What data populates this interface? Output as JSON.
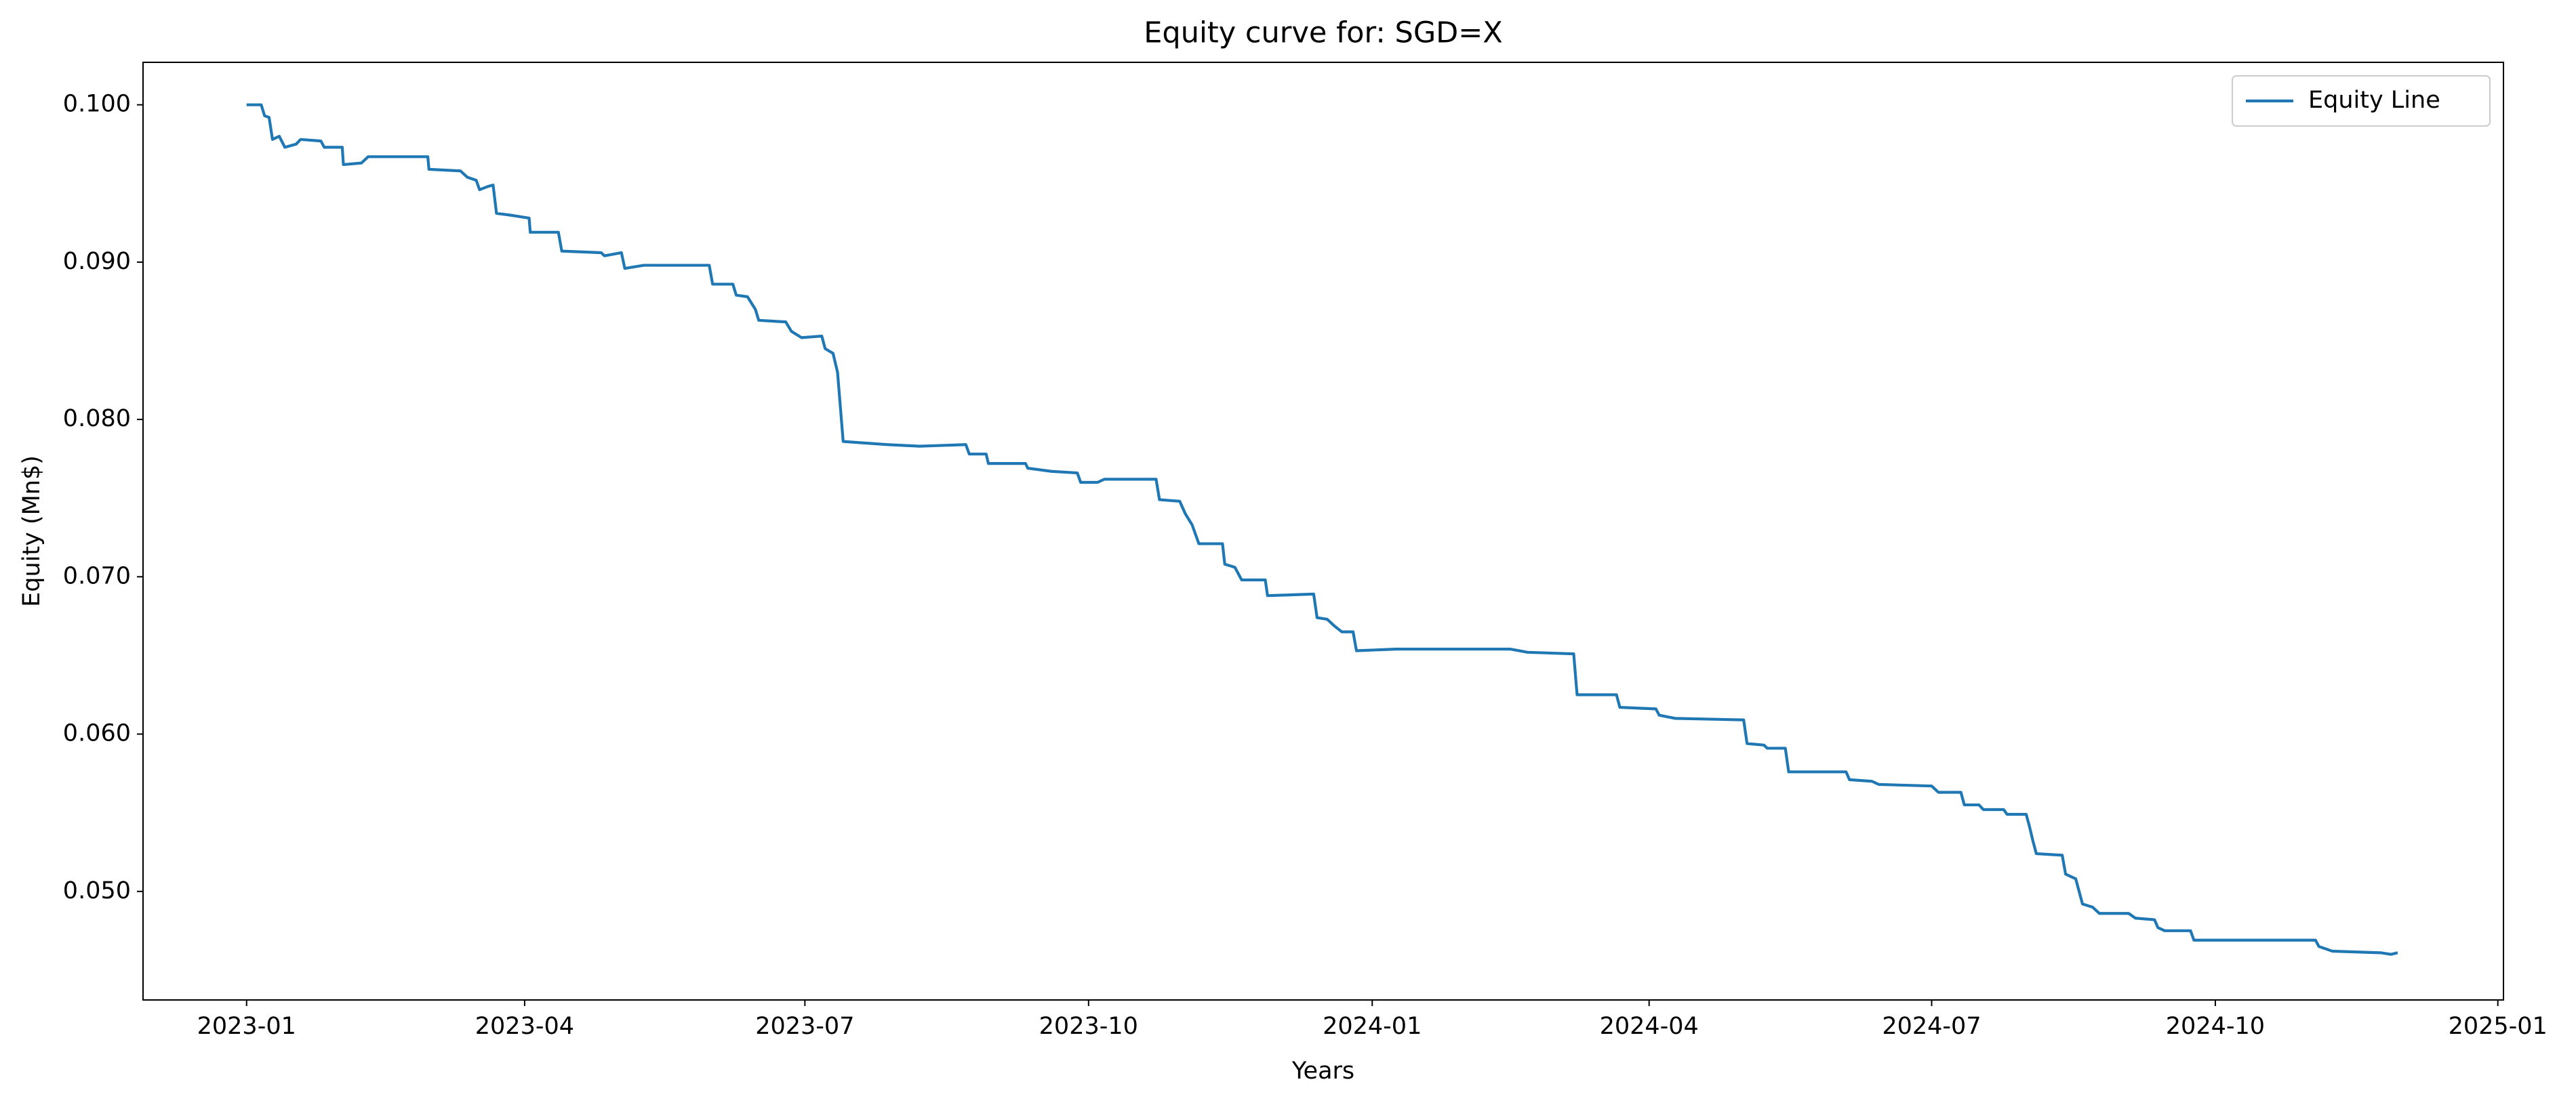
{
  "chart_data": {
    "type": "line",
    "title": "Equity curve for: SGD=X",
    "xlabel": "Years",
    "ylabel": "Equity (Mn$)",
    "legend": "upper right",
    "x": [
      2023.0,
      2023.013,
      2023.016,
      2023.02,
      2023.023,
      2023.029,
      2023.034,
      2023.044,
      2023.048,
      2023.066,
      2023.069,
      2023.085,
      2023.086,
      2023.102,
      2023.108,
      2023.161,
      2023.162,
      2023.19,
      2023.196,
      2023.204,
      2023.207,
      2023.214,
      2023.219,
      2023.222,
      2023.233,
      2023.251,
      2023.252,
      2023.277,
      2023.28,
      2023.315,
      2023.318,
      2023.333,
      2023.336,
      2023.353,
      2023.411,
      2023.414,
      2023.432,
      2023.435,
      2023.445,
      2023.452,
      2023.455,
      2023.479,
      2023.484,
      2023.493,
      2023.511,
      2023.514,
      2023.521,
      2023.525,
      2023.53,
      2023.569,
      2023.598,
      2023.639,
      2023.642,
      2023.657,
      2023.659,
      2023.692,
      2023.694,
      2023.715,
      2023.738,
      2023.741,
      2023.756,
      2023.762,
      2023.808,
      2023.811,
      2023.829,
      2023.834,
      2023.84,
      2023.846,
      2023.867,
      2023.869,
      2023.878,
      2023.884,
      2023.905,
      2023.907,
      2023.948,
      2023.951,
      2023.96,
      2023.966,
      2023.973,
      2023.983,
      2023.986,
      2024.021,
      2024.123,
      2024.138,
      2024.179,
      2024.182,
      2024.217,
      2024.22,
      2024.252,
      2024.255,
      2024.269,
      2024.33,
      2024.333,
      2024.348,
      2024.351,
      2024.367,
      2024.37,
      2024.421,
      2024.424,
      2024.444,
      2024.45,
      2024.497,
      2024.503,
      2024.523,
      2024.526,
      2024.539,
      2024.543,
      2024.561,
      2024.564,
      2024.581,
      2024.584,
      2024.587,
      2024.59,
      2024.613,
      2024.616,
      2024.625,
      2024.631,
      2024.64,
      2024.646,
      2024.672,
      2024.678,
      2024.695,
      2024.698,
      2024.704,
      2024.727,
      2024.73,
      2024.838,
      2024.841,
      2024.853,
      2024.896,
      2024.905,
      2024.911
    ],
    "series": [
      {
        "name": "Equity Line",
        "color": "#1f77b4",
        "values": [
          0.1,
          0.1,
          0.0993,
          0.0992,
          0.0978,
          0.098,
          0.0973,
          0.0975,
          0.0978,
          0.0977,
          0.0973,
          0.0973,
          0.0962,
          0.0963,
          0.0967,
          0.0967,
          0.0959,
          0.0958,
          0.0954,
          0.0952,
          0.0946,
          0.0948,
          0.0949,
          0.0931,
          0.093,
          0.0928,
          0.0919,
          0.0919,
          0.0907,
          0.0906,
          0.0904,
          0.0906,
          0.0896,
          0.0898,
          0.0898,
          0.0886,
          0.0886,
          0.0879,
          0.0878,
          0.087,
          0.0863,
          0.0862,
          0.0856,
          0.0852,
          0.0853,
          0.0845,
          0.0842,
          0.083,
          0.0786,
          0.0784,
          0.0783,
          0.0784,
          0.0778,
          0.0778,
          0.0772,
          0.0772,
          0.0769,
          0.0767,
          0.0766,
          0.076,
          0.076,
          0.0762,
          0.0762,
          0.0749,
          0.0748,
          0.074,
          0.0733,
          0.0721,
          0.0721,
          0.0708,
          0.0706,
          0.0698,
          0.0698,
          0.0688,
          0.0689,
          0.0674,
          0.0673,
          0.0669,
          0.0665,
          0.0665,
          0.0653,
          0.0654,
          0.0654,
          0.0652,
          0.0651,
          0.0625,
          0.0625,
          0.0617,
          0.0616,
          0.0612,
          0.061,
          0.0609,
          0.0594,
          0.0593,
          0.0591,
          0.0591,
          0.0576,
          0.0576,
          0.0571,
          0.057,
          0.0568,
          0.0567,
          0.0563,
          0.0563,
          0.0555,
          0.0555,
          0.0552,
          0.0552,
          0.0549,
          0.0549,
          0.0541,
          0.0532,
          0.0524,
          0.0523,
          0.0511,
          0.0508,
          0.0492,
          0.049,
          0.0486,
          0.0486,
          0.0483,
          0.0482,
          0.0477,
          0.0475,
          0.0475,
          0.0469,
          0.0469,
          0.0465,
          0.0462,
          0.0461,
          0.046,
          0.0461
        ]
      }
    ],
    "xlim": [
      2022.908,
      2025.005
    ],
    "xticks": [
      {
        "value": 2023.0,
        "label": "2023-01"
      },
      {
        "value": 2023.247,
        "label": "2023-04"
      },
      {
        "value": 2023.496,
        "label": "2023-07"
      },
      {
        "value": 2023.748,
        "label": "2023-10"
      },
      {
        "value": 2024.0,
        "label": "2024-01"
      },
      {
        "value": 2024.246,
        "label": "2024-04"
      },
      {
        "value": 2024.497,
        "label": "2024-07"
      },
      {
        "value": 2024.749,
        "label": "2024-10"
      },
      {
        "value": 2025.0,
        "label": "2025-01"
      }
    ],
    "ylim": [
      0.0431,
      0.1027
    ],
    "yticks": [
      {
        "value": 0.05,
        "label": "0.050"
      },
      {
        "value": 0.06,
        "label": "0.060"
      },
      {
        "value": 0.07,
        "label": "0.070"
      },
      {
        "value": 0.08,
        "label": "0.080"
      },
      {
        "value": 0.09,
        "label": "0.090"
      },
      {
        "value": 0.1,
        "label": "0.100"
      }
    ]
  }
}
